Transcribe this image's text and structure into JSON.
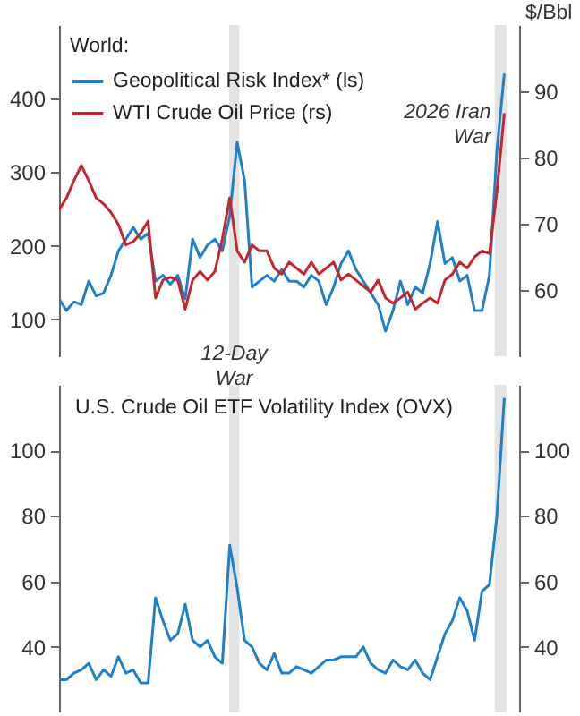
{
  "chart_data": [
    {
      "type": "line",
      "legend_title": "World:",
      "legend": "top left",
      "y2label": "$/Bbl",
      "categories": [
        null,
        null,
        null,
        null,
        null,
        null,
        null,
        null,
        null,
        null,
        null,
        null,
        null,
        null,
        null,
        null,
        null,
        null,
        null,
        null,
        null,
        null,
        null,
        null,
        null,
        null,
        null,
        null,
        null,
        null,
        null,
        null,
        null,
        null,
        null,
        null,
        null,
        null,
        null,
        null,
        null,
        null,
        null,
        null,
        null,
        null,
        null,
        null,
        null,
        null,
        null,
        null,
        null,
        null,
        null,
        null,
        null,
        null,
        null,
        null,
        null
      ],
      "series": [
        {
          "name": "Geopolitical Risk Index* (ls)",
          "color": "#1f7fc8",
          "values": [
            128,
            112,
            124,
            120,
            152,
            132,
            136,
            160,
            193,
            209,
            225,
            209,
            217,
            152,
            160,
            148,
            160,
            128,
            209,
            184,
            201,
            209,
            193,
            241,
            341,
            289,
            144,
            152,
            160,
            152,
            168,
            152,
            152,
            144,
            160,
            152,
            120,
            144,
            176,
            193,
            168,
            152,
            136,
            120,
            84,
            112,
            152,
            120,
            144,
            136,
            176,
            233,
            176,
            184,
            152,
            160,
            112,
            112,
            160,
            329,
            434
          ]
        },
        {
          "name": "WTI Crude Oil Price (rs)",
          "color": "#c4262e",
          "axis": "y2",
          "values": [
            72.1,
            73.9,
            76.5,
            78.8,
            76.5,
            73.9,
            73.0,
            71.7,
            69.9,
            66.8,
            67.3,
            68.6,
            70.4,
            58.8,
            61.5,
            61.9,
            61.5,
            57.1,
            61.5,
            62.8,
            61.5,
            62.8,
            67.7,
            73.9,
            65.9,
            64.2,
            66.8,
            65.9,
            65.9,
            63.3,
            62.4,
            64.2,
            63.3,
            62.4,
            64.2,
            62.4,
            63.3,
            64.2,
            61.5,
            62.4,
            61.5,
            60.6,
            59.7,
            61.5,
            58.8,
            58.0,
            58.8,
            59.7,
            57.1,
            58.0,
            58.8,
            58.0,
            61.5,
            62.4,
            64.2,
            63.3,
            65.0,
            65.9,
            65.5,
            74.8,
            86.7
          ]
        }
      ],
      "ylim": [
        50,
        500
      ],
      "yticks": [
        100,
        200,
        300,
        400
      ],
      "y2lim": [
        50,
        100
      ],
      "y2ticks": [
        60,
        70,
        80,
        90
      ],
      "annotations": [
        "12-Day War",
        "2026 Iran War"
      ]
    },
    {
      "type": "line",
      "title": "U.S. Crude Oil ETF Volatility Index (OVX)",
      "categories": [
        null,
        null,
        null,
        null,
        null,
        null,
        null,
        null,
        null,
        null,
        null,
        null,
        null,
        null,
        null,
        null,
        null,
        null,
        null,
        null,
        null,
        null,
        null,
        null,
        null,
        null,
        null,
        null,
        null,
        null,
        null,
        null,
        null,
        null,
        null,
        null,
        null,
        null,
        null,
        null,
        null,
        null,
        null,
        null,
        null,
        null,
        null,
        null,
        null,
        null,
        null,
        null,
        null,
        null,
        null,
        null,
        null,
        null,
        null,
        null,
        null
      ],
      "series": [
        {
          "color": "#1f7fc8",
          "values": [
            30,
            30,
            32,
            33,
            35,
            30,
            33,
            31,
            37,
            32,
            33,
            29,
            29,
            55,
            48,
            42,
            44,
            53,
            42,
            40,
            42,
            37,
            35,
            71,
            58,
            42,
            40,
            35,
            33,
            38,
            32,
            32,
            34,
            33,
            32,
            34,
            36,
            36,
            37,
            37,
            37,
            40,
            35,
            33,
            32,
            36,
            34,
            33,
            36,
            32,
            30,
            37,
            44,
            48,
            55,
            51,
            42,
            57,
            59,
            80,
            116
          ]
        }
      ],
      "ylim": [
        20,
        120
      ],
      "yticks": [
        40,
        60,
        80,
        100
      ],
      "y2lim": [
        20,
        120
      ],
      "y2ticks": [
        40,
        60,
        80,
        100
      ]
    }
  ]
}
